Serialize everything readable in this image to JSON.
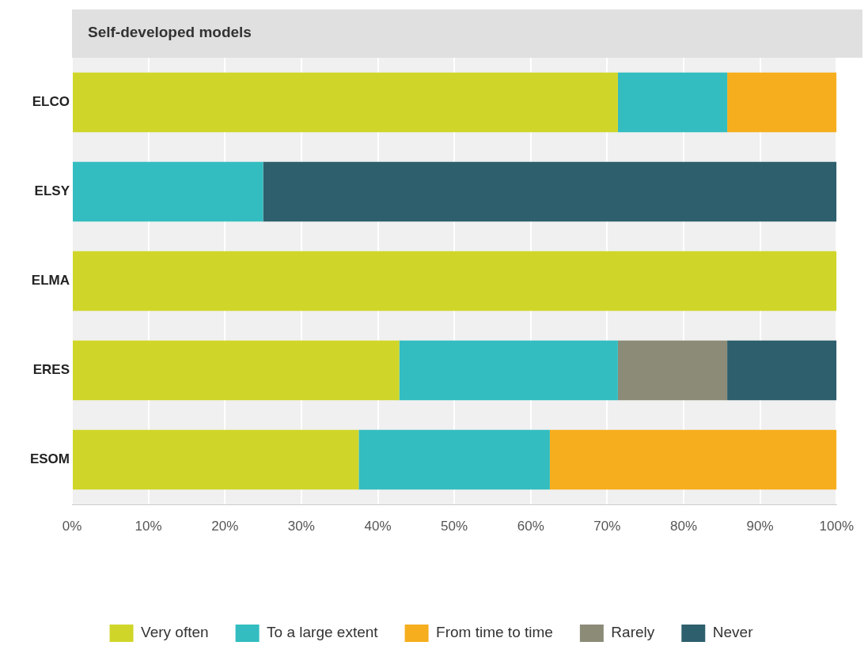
{
  "chart_data": {
    "type": "bar",
    "title": "Self-developed models",
    "orientation": "horizontal",
    "stacked": true,
    "categories": [
      "ELCO",
      "ELSY",
      "ELMA",
      "ERES",
      "ESOM"
    ],
    "series": [
      {
        "name": "Very often",
        "color": "#cfd629",
        "values": [
          71.4,
          0,
          100,
          42.8,
          37.5
        ]
      },
      {
        "name": "To a large extent",
        "color": "#33bdc0",
        "values": [
          14.3,
          25,
          0,
          28.6,
          25
        ]
      },
      {
        "name": "From time to time",
        "color": "#f6ae1e",
        "values": [
          14.3,
          0,
          0,
          0,
          37.5
        ]
      },
      {
        "name": "Rarely",
        "color": "#8b8b78",
        "values": [
          0,
          0,
          0,
          14.3,
          0
        ]
      },
      {
        "name": "Never",
        "color": "#2e5f6d",
        "values": [
          0,
          75,
          0,
          14.3,
          0
        ]
      }
    ],
    "xlim": [
      0,
      100
    ],
    "xticks": [
      {
        "value": 0,
        "label": "0%"
      },
      {
        "value": 10,
        "label": "10%"
      },
      {
        "value": 20,
        "label": "20%"
      },
      {
        "value": 30,
        "label": "30%"
      },
      {
        "value": 40,
        "label": "40%"
      },
      {
        "value": 50,
        "label": "50%"
      },
      {
        "value": 60,
        "label": "60%"
      },
      {
        "value": 70,
        "label": "70%"
      },
      {
        "value": 80,
        "label": "80%"
      },
      {
        "value": 90,
        "label": "90%"
      },
      {
        "value": 100,
        "label": "100%"
      }
    ],
    "grid": "x",
    "legend": "bottom"
  }
}
